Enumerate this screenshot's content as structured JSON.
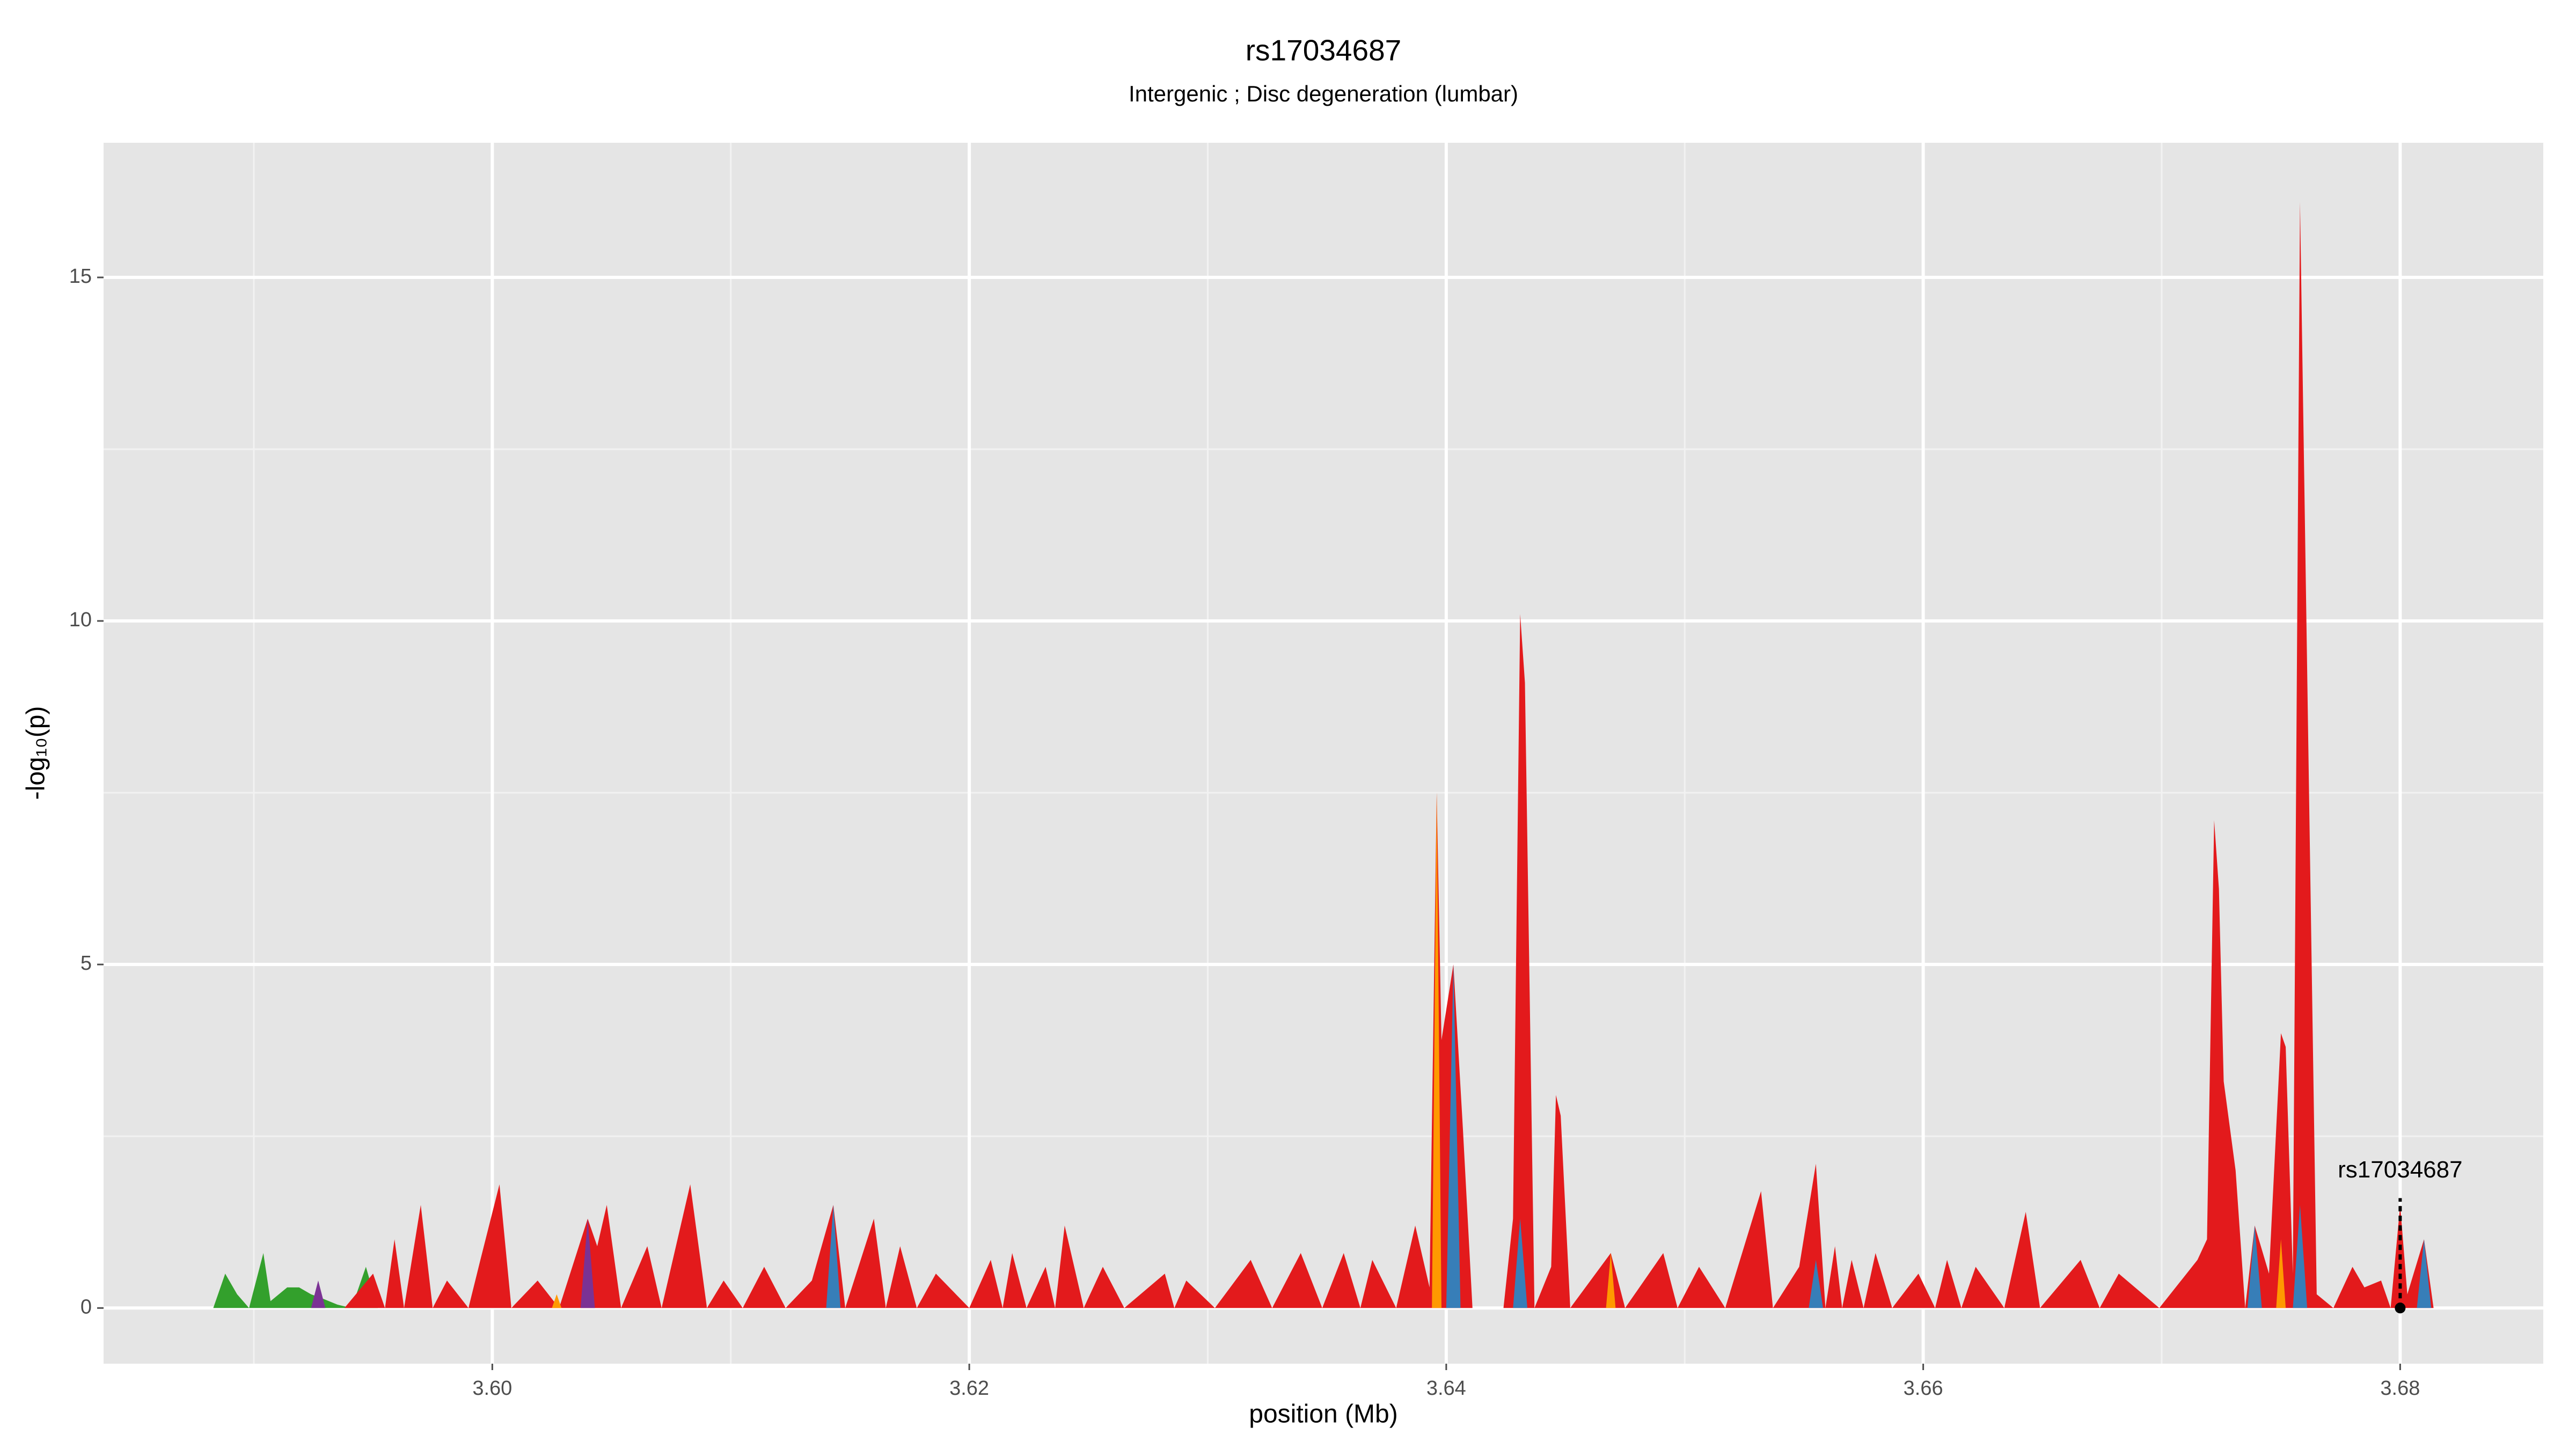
{
  "chart_data": {
    "type": "area",
    "title": "rs17034687",
    "subtitle": "Intergenic ; Disc degeneration (lumbar)",
    "xlabel": "position (Mb)",
    "ylabel": "-log₁₀(p)",
    "xlim": [
      3.5837,
      3.686
    ],
    "ylim": [
      -0.81,
      16.96
    ],
    "xticks": [
      {
        "value": 3.6,
        "label": "3.60"
      },
      {
        "value": 3.62,
        "label": "3.62"
      },
      {
        "value": 3.64,
        "label": "3.64"
      },
      {
        "value": 3.66,
        "label": "3.66"
      },
      {
        "value": 3.68,
        "label": "3.68"
      }
    ],
    "yticks": [
      0,
      5,
      10,
      15
    ],
    "x_minor_ticks": [
      3.59,
      3.61,
      3.63,
      3.65,
      3.67
    ],
    "y_minor_ticks": [
      2.5,
      7.5,
      12.5
    ],
    "grid": true,
    "annotation": {
      "text": "rs17034687",
      "x": 3.68,
      "y": 1.6
    },
    "series": [
      {
        "color": "#33a02c",
        "x": [
          3.5883,
          3.5888,
          3.5893,
          3.5898,
          3.5904,
          3.5907,
          3.5914,
          3.5919,
          3.5924,
          3.5928,
          3.5935,
          3.5941,
          3.5947,
          3.5952
        ],
        "values": [
          0,
          0.5,
          0.2,
          0,
          0.8,
          0.1,
          0.3,
          0.3,
          0.2,
          0.15,
          0.05,
          0,
          0.6,
          0
        ]
      },
      {
        "color": "#e31a1c",
        "x": [
          3.5928,
          3.5938,
          3.595,
          3.5955,
          3.5959,
          3.5963,
          3.597,
          3.5975,
          3.5981,
          3.599,
          3.5995,
          3.6003,
          3.6008,
          3.6019,
          3.6028,
          3.604,
          3.6044,
          3.6048,
          3.6054,
          3.6065,
          3.6071,
          3.6083,
          3.609,
          3.6097,
          3.6105,
          3.6114,
          3.6123,
          3.6134,
          3.6143,
          3.6148,
          3.616,
          3.6165,
          3.6171,
          3.6178,
          3.6186,
          3.62,
          3.6209,
          3.6214,
          3.6218,
          3.6224,
          3.6232,
          3.6236,
          3.624,
          3.6248,
          3.6256,
          3.6265,
          3.6282,
          3.6286,
          3.6291,
          3.6303,
          3.6318,
          3.6327,
          3.6339,
          3.6348,
          3.6357,
          3.6364,
          3.6369,
          3.6379,
          3.6387,
          3.6393,
          3.6396,
          3.6398,
          3.6403,
          3.6407,
          3.6411,
          3.6424,
          3.6428,
          3.6431,
          3.6433,
          3.6437,
          3.6444,
          3.6446,
          3.6448,
          3.6452,
          3.6469,
          3.6475,
          3.6491,
          3.6497,
          3.6506,
          3.6517,
          3.6532,
          3.6537,
          3.6548,
          3.6555,
          3.6559,
          3.6563,
          3.6566,
          3.657,
          3.6575,
          3.658,
          3.6587,
          3.6598,
          3.6605,
          3.661,
          3.6616,
          3.6622,
          3.6634,
          3.6643,
          3.6649,
          3.6666,
          3.6674,
          3.6682,
          3.6699,
          3.6715,
          3.6719,
          3.6722,
          3.6724,
          3.6726,
          3.6731,
          3.6735,
          3.6739,
          3.6745,
          3.675,
          3.6752,
          3.6755,
          3.6758,
          3.6765,
          3.6772,
          3.678,
          3.6785,
          3.6792,
          3.6796,
          3.68,
          3.6803,
          3.681,
          3.6814
        ],
        "values": [
          0,
          0,
          0.5,
          0,
          1.0,
          0,
          1.5,
          0,
          0.4,
          0,
          0.7,
          1.8,
          0,
          0.4,
          0,
          1.3,
          0.9,
          1.5,
          0,
          0.9,
          0,
          1.8,
          0,
          0.4,
          0,
          0.6,
          0,
          0.4,
          1.5,
          0,
          1.3,
          0,
          0.9,
          0,
          0.5,
          0,
          0.7,
          0,
          0.8,
          0,
          0.6,
          0,
          1.2,
          0,
          0.6,
          0,
          0.5,
          0,
          0.4,
          0,
          0.7,
          0,
          0.8,
          0,
          0.8,
          0,
          0.7,
          0,
          1.2,
          0.3,
          7.5,
          3.9,
          5.0,
          2.6,
          0,
          0,
          1.3,
          10.1,
          9.1,
          0,
          0.6,
          3.1,
          2.8,
          0,
          0.8,
          0,
          0.8,
          0,
          0.6,
          0,
          1.7,
          0,
          0.6,
          2.1,
          0,
          0.9,
          0,
          0.7,
          0,
          0.8,
          0,
          0.5,
          0,
          0.7,
          0,
          0.6,
          0,
          1.4,
          0,
          0.7,
          0,
          0.5,
          0,
          0.7,
          1.0,
          7.1,
          6.1,
          3.3,
          2.0,
          0,
          1.2,
          0.5,
          4.0,
          3.8,
          0.5,
          16.1,
          0.2,
          0,
          0.6,
          0.3,
          0.4,
          0,
          1.5,
          0.2,
          1.0,
          0
        ]
      },
      {
        "color": "#377eb8",
        "x": [
          3.614,
          3.6143,
          3.6146,
          3.6,
          3.64,
          3.6403,
          3.6406,
          3.6,
          3.6428,
          3.6431,
          3.6434,
          3.6,
          3.6552,
          3.6555,
          3.6558,
          3.6,
          3.6736,
          3.6739,
          3.6742,
          3.6,
          3.6755,
          3.6758,
          3.6761,
          3.6,
          3.6807,
          3.681,
          3.6813
        ],
        "values": [
          0,
          1.5,
          0,
          null,
          0,
          5.0,
          0,
          null,
          0,
          1.3,
          0,
          null,
          0,
          0.7,
          0,
          null,
          0,
          1.2,
          0,
          null,
          0,
          1.5,
          0,
          null,
          0,
          1.0,
          0
        ]
      },
      {
        "color": "#ff9900",
        "x": [
          3.6025,
          3.6027,
          3.6029,
          3.6,
          3.6394,
          3.6396,
          3.6398,
          3.6,
          3.6467,
          3.6469,
          3.6471,
          3.6,
          3.6748,
          3.675,
          3.6752
        ],
        "values": [
          0,
          0.2,
          0,
          null,
          0,
          7.5,
          0,
          null,
          0,
          0.8,
          0,
          null,
          0,
          1.0,
          0
        ]
      },
      {
        "color": "#7b3294",
        "x": [
          3.5924,
          3.5927,
          3.593,
          3.6,
          3.6037,
          3.604,
          3.6043
        ],
        "values": [
          0,
          0.4,
          0,
          null,
          0,
          1.3,
          0
        ]
      }
    ]
  }
}
